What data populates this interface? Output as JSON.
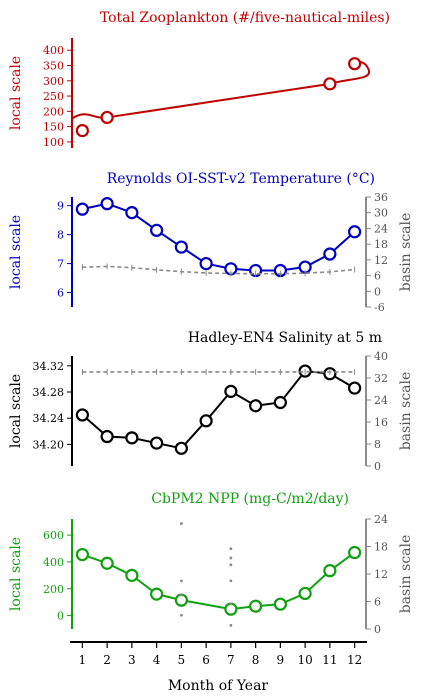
{
  "x_axis": {
    "label": "Month of Year",
    "ticks": [
      "1",
      "2",
      "3",
      "4",
      "5",
      "6",
      "7",
      "8",
      "9",
      "10",
      "11",
      "12"
    ],
    "xlim": [
      0.5,
      12.5
    ]
  },
  "chart_data": [
    {
      "type": "line",
      "title": "Total Zooplankton (#/five-nautical-miles)",
      "color": "#c00000",
      "ylabel": "local scale",
      "ylim": [
        80,
        440
      ],
      "yticks": [
        "100",
        "150",
        "200",
        "250",
        "300",
        "350",
        "400"
      ],
      "series": [
        {
          "points": [
            {
              "x": 1,
              "y": 137
            },
            {
              "x": 2,
              "y": 180
            },
            {
              "x": 11,
              "y": 290
            },
            {
              "x": 12,
              "y": 356
            }
          ]
        }
      ]
    },
    {
      "type": "line",
      "title": "Reynolds OI-SST-v2 Temperature (°C)",
      "color": "#0000c0",
      "ylabel": "local scale",
      "ylim": [
        5.5,
        9.3
      ],
      "yticks": [
        "6",
        "7",
        "8",
        "9"
      ],
      "y2label": "basin scale",
      "y2lim": [
        -6,
        36
      ],
      "y2ticks": [
        "-6",
        "0",
        "6",
        "12",
        "18",
        "24",
        "30",
        "36"
      ],
      "series": [
        {
          "points": [
            {
              "x": 1,
              "y": 8.88
            },
            {
              "x": 2,
              "y": 9.07
            },
            {
              "x": 3,
              "y": 8.76
            },
            {
              "x": 4,
              "y": 8.15
            },
            {
              "x": 5,
              "y": 7.57
            },
            {
              "x": 6,
              "y": 7.0
            },
            {
              "x": 7,
              "y": 6.82
            },
            {
              "x": 8,
              "y": 6.76
            },
            {
              "x": 9,
              "y": 6.76
            },
            {
              "x": 10,
              "y": 6.88
            },
            {
              "x": 11,
              "y": 7.33
            },
            {
              "x": 12,
              "y": 8.1
            }
          ]
        },
        {
          "axis": "right",
          "points": [
            {
              "x": 1,
              "y": 9.2
            },
            {
              "x": 2,
              "y": 9.5
            },
            {
              "x": 3,
              "y": 9.0
            },
            {
              "x": 4,
              "y": 8.2
            },
            {
              "x": 5,
              "y": 7.5
            },
            {
              "x": 6,
              "y": 7.0
            },
            {
              "x": 7,
              "y": 6.8
            },
            {
              "x": 8,
              "y": 6.7
            },
            {
              "x": 9,
              "y": 6.7
            },
            {
              "x": 10,
              "y": 6.9
            },
            {
              "x": 11,
              "y": 7.4
            },
            {
              "x": 12,
              "y": 8.3
            }
          ]
        }
      ]
    },
    {
      "type": "line",
      "title": "Hadley-EN4 Salinity at 5 m",
      "color": "#000000",
      "ylabel": "local scale",
      "ylim": [
        34.167,
        34.335
      ],
      "yticks": [
        "34.20",
        "34.24",
        "34.28",
        "34.32"
      ],
      "y2label": "basin scale",
      "y2lim": [
        0,
        40
      ],
      "y2ticks": [
        "0",
        "8",
        "16",
        "24",
        "32",
        "40"
      ],
      "series": [
        {
          "points": [
            {
              "x": 1,
              "y": 34.245
            },
            {
              "x": 2,
              "y": 34.212
            },
            {
              "x": 3,
              "y": 34.21
            },
            {
              "x": 4,
              "y": 34.202
            },
            {
              "x": 5,
              "y": 34.194
            },
            {
              "x": 6,
              "y": 34.236
            },
            {
              "x": 7,
              "y": 34.281
            },
            {
              "x": 8,
              "y": 34.259
            },
            {
              "x": 9,
              "y": 34.264
            },
            {
              "x": 10,
              "y": 34.312
            },
            {
              "x": 11,
              "y": 34.308
            },
            {
              "x": 12,
              "y": 34.286
            }
          ]
        },
        {
          "axis": "right",
          "points": [
            {
              "x": 1,
              "y": 34.2
            },
            {
              "x": 2,
              "y": 34.2
            },
            {
              "x": 3,
              "y": 34.2
            },
            {
              "x": 4,
              "y": 34.2
            },
            {
              "x": 5,
              "y": 34.2
            },
            {
              "x": 6,
              "y": 34.2
            },
            {
              "x": 7,
              "y": 34.2
            },
            {
              "x": 8,
              "y": 34.2
            },
            {
              "x": 9,
              "y": 34.2
            },
            {
              "x": 10,
              "y": 34.2
            },
            {
              "x": 11,
              "y": 34.2
            },
            {
              "x": 12,
              "y": 34.2
            }
          ]
        }
      ]
    },
    {
      "type": "line",
      "title": "CbPM2 NPP (mg-C/m2/day)",
      "color": "#10a010",
      "ylabel": "local scale",
      "ylim": [
        -100,
        720
      ],
      "yticks": [
        "0",
        "200",
        "400",
        "600"
      ],
      "y2label": "basin scale",
      "y2lim": [
        0,
        24
      ],
      "y2ticks": [
        "0",
        "6",
        "12",
        "18",
        "24"
      ],
      "series": [
        {
          "points": [
            {
              "x": 1,
              "y": 455
            },
            {
              "x": 2,
              "y": 390
            },
            {
              "x": 3,
              "y": 300
            },
            {
              "x": 4,
              "y": 160
            },
            {
              "x": 5,
              "y": 115
            },
            {
              "x": 7,
              "y": 48
            },
            {
              "x": 8,
              "y": 70
            },
            {
              "x": 9,
              "y": 85
            },
            {
              "x": 10,
              "y": 165
            },
            {
              "x": 11,
              "y": 335
            },
            {
              "x": 12,
              "y": 470
            }
          ]
        },
        {
          "axis": "right",
          "points": [
            {
              "x": 5,
              "y": 23.0
            },
            {
              "x": 5,
              "y": 10.5
            },
            {
              "x": 5,
              "y": 7.5
            },
            {
              "x": 5,
              "y": 3.0
            },
            {
              "x": 7,
              "y": 17.5
            },
            {
              "x": 7,
              "y": 15.5
            },
            {
              "x": 7,
              "y": 14.0
            },
            {
              "x": 7,
              "y": 10.5
            },
            {
              "x": 7,
              "y": 5.5
            },
            {
              "x": 7,
              "y": 0.8
            }
          ]
        }
      ]
    }
  ]
}
